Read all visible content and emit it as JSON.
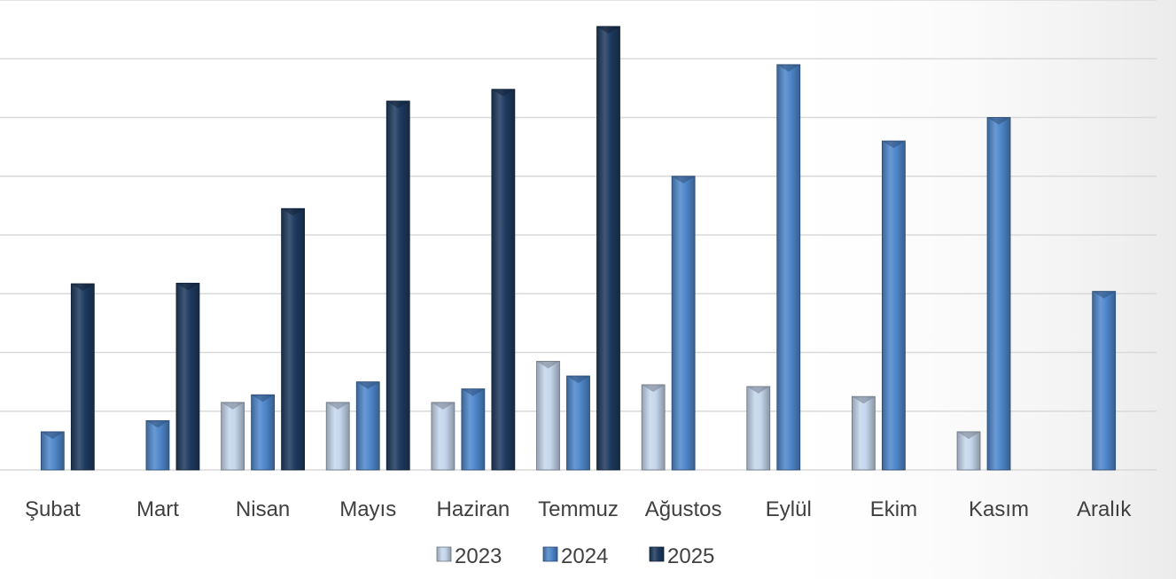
{
  "chart_data": {
    "type": "bar",
    "title": "",
    "xlabel": "",
    "ylabel": "",
    "categories": [
      "Şubat",
      "Mart",
      "Nisan",
      "Mayıs",
      "Haziran",
      "Temmuz",
      "Ağustos",
      "Eylül",
      "Ekim",
      "Kasım",
      "Aralık"
    ],
    "ylim": [
      0,
      8
    ],
    "grid": true,
    "legend_position": "bottom",
    "series": [
      {
        "name": "2023",
        "color": "#c5d6ec",
        "values": [
          null,
          null,
          1.15,
          1.15,
          1.15,
          1.85,
          1.45,
          1.42,
          1.25,
          0.65,
          null
        ]
      },
      {
        "name": "2024",
        "color": "#4f87cb",
        "values": [
          0.65,
          0.84,
          1.28,
          1.5,
          1.38,
          1.6,
          5.0,
          6.9,
          5.6,
          6.0,
          3.04
        ]
      },
      {
        "name": "2025",
        "color": "#1e3a5f",
        "values": [
          3.17,
          3.18,
          4.45,
          6.28,
          6.48,
          7.55,
          null,
          null,
          null,
          null,
          null
        ]
      }
    ]
  }
}
